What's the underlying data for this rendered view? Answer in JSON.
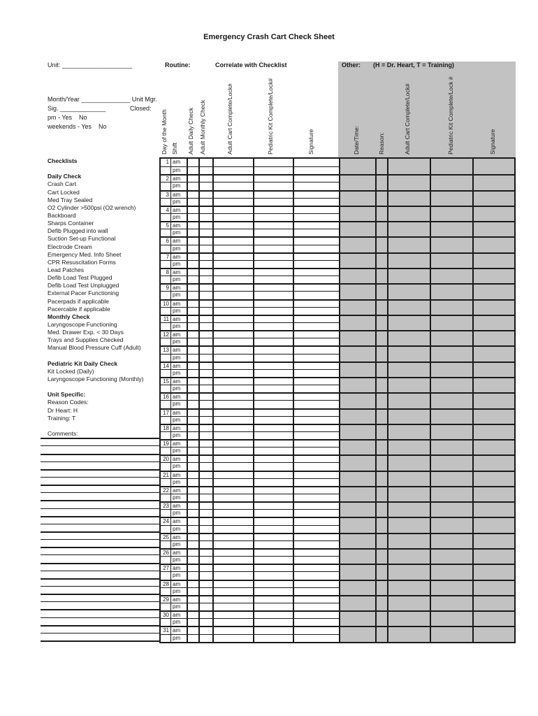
{
  "title": "Emergency Crash Cart Check Sheet",
  "header": {
    "unit_line": "Unit: ____________________",
    "routine_label": "Routine:",
    "correlate_label": "Correlate with Checklist",
    "other_label": "Other:",
    "other_note": "(H = Dr. Heart, T = Training)",
    "month_year_line": "Month/Year ______________ Unit Mgr.",
    "sig_line": "Sig. _____________",
    "closed_label": "Closed:",
    "pm_line": "pm - Yes    No",
    "weekends_line": "weekends - Yes    No"
  },
  "columns": {
    "routine": [
      "Day of the Month",
      "Shift",
      "Adult Daily Check",
      "Adult Monthly Check",
      "Adult Cart Complete/Lock#",
      "Pediatric Kit Complete/Lock#",
      "Signature"
    ],
    "other": [
      "Date/Time:",
      "Reason:",
      "Adult Cart Complete/Lock#",
      "Pediatric Kit Complete/Lock #",
      "Signature"
    ]
  },
  "grid": {
    "days": 31,
    "shifts": [
      "am",
      "pm"
    ]
  },
  "checklist": [
    {
      "label": "Checklists",
      "bold": true
    },
    {
      "label": "",
      "bold": false
    },
    {
      "label": "Daily Check",
      "bold": true
    },
    {
      "label": "Crash Cart",
      "bold": false
    },
    {
      "label": "Cart Locked",
      "bold": false
    },
    {
      "label": "Med Tray Sealed",
      "bold": false
    },
    {
      "label": "O2 Cylinder >500psi (O2 wrench)",
      "bold": false
    },
    {
      "label": "Backboard",
      "bold": false
    },
    {
      "label": "Sharps Container",
      "bold": false
    },
    {
      "label": "Defib Plugged into wall",
      "bold": false
    },
    {
      "label": "Suction Set-up Functional",
      "bold": false
    },
    {
      "label": "Electrode Cream",
      "bold": false
    },
    {
      "label": "Emergency Med. Info Sheet",
      "bold": false
    },
    {
      "label": "CPR Resuscitation Forms",
      "bold": false
    },
    {
      "label": "Lead Patches",
      "bold": false
    },
    {
      "label": "Defib Load Test Plugged",
      "bold": false
    },
    {
      "label": "Defib Load Test Unplugged",
      "bold": false
    },
    {
      "label": "External Pacer Functioning",
      "bold": false
    },
    {
      "label": "Pacerpads if applicable",
      "bold": false
    },
    {
      "label": "Pacercable if applicable",
      "bold": false
    },
    {
      "label": "Monthly Check",
      "bold": true
    },
    {
      "label": "Laryngoscope Functioning",
      "bold": false
    },
    {
      "label": "Med. Drawer Exp. < 30 Days",
      "bold": false
    },
    {
      "label": "Trays and Supplies Checked",
      "bold": false
    },
    {
      "label": "Manual Blood Pressure Cuff (Adult)",
      "bold": false
    },
    {
      "label": "",
      "bold": false
    },
    {
      "label": "Pediatric Kit Daily Check",
      "bold": true
    },
    {
      "label": "Kit Locked (Daily)",
      "bold": false
    },
    {
      "label": "Laryngoscope Functioning (Monthly)",
      "bold": false
    },
    {
      "label": "",
      "bold": false
    },
    {
      "label": "Unit Specific:",
      "bold": true
    },
    {
      "label": "Reason Codes:",
      "bold": false
    },
    {
      "label": "Dr Heart: H",
      "bold": false
    },
    {
      "label": "Training: T",
      "bold": false
    },
    {
      "label": "",
      "bold": false
    },
    {
      "label": "Comments:",
      "bold": false
    }
  ],
  "comments": {
    "line_count": 27
  },
  "colors": {
    "other_bg": "#c2c2c2",
    "ink": "#1a1a1a"
  }
}
